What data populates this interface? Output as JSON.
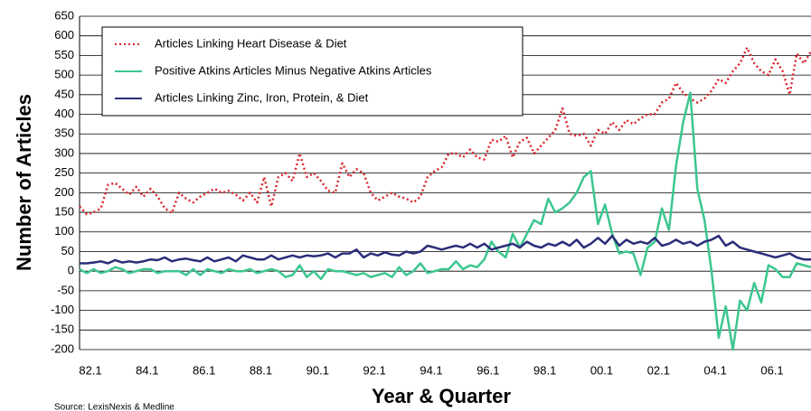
{
  "chart_data": {
    "type": "line",
    "source": "Source:  LexisNexis & Medline",
    "x_label": "Year & Quarter",
    "y_label": "Number of Articles",
    "categories": [
      "82.1",
      null,
      null,
      null,
      null,
      null,
      null,
      null,
      "84.1",
      null,
      null,
      null,
      null,
      null,
      null,
      null,
      "86.1",
      null,
      null,
      null,
      null,
      null,
      null,
      null,
      "88.1",
      null,
      null,
      null,
      null,
      null,
      null,
      null,
      "90.1",
      null,
      null,
      null,
      null,
      null,
      null,
      null,
      "92.1",
      null,
      null,
      null,
      null,
      null,
      null,
      null,
      "94.1",
      null,
      null,
      null,
      null,
      null,
      null,
      null,
      "96.1",
      null,
      null,
      null,
      null,
      null,
      null,
      null,
      "98.1",
      null,
      null,
      null,
      null,
      null,
      null,
      null,
      "00.1",
      null,
      null,
      null,
      null,
      null,
      null,
      null,
      "02.1",
      null,
      null,
      null,
      null,
      null,
      null,
      null,
      "04.1",
      null,
      null,
      null,
      null,
      null,
      null,
      null,
      "06.1",
      null,
      null,
      null,
      null,
      null,
      null,
      null
    ],
    "series": [
      {
        "name": "Articles Linking Heart Disease & Diet",
        "color": "#d9262c",
        "style": "dotted",
        "values": [
          165,
          145,
          150,
          160,
          220,
          225,
          210,
          195,
          215,
          190,
          210,
          190,
          160,
          148,
          200,
          185,
          175,
          190,
          200,
          210,
          200,
          205,
          195,
          180,
          200,
          175,
          240,
          165,
          240,
          250,
          230,
          300,
          240,
          250,
          230,
          205,
          200,
          275,
          240,
          260,
          250,
          200,
          180,
          190,
          200,
          190,
          185,
          175,
          190,
          240,
          255,
          265,
          300,
          300,
          290,
          310,
          290,
          285,
          335,
          330,
          345,
          290,
          330,
          340,
          300,
          320,
          340,
          360,
          415,
          350,
          345,
          350,
          320,
          360,
          350,
          380,
          360,
          385,
          375,
          390,
          400,
          400,
          430,
          440,
          480,
          455,
          440,
          430,
          440,
          460,
          490,
          480,
          510,
          530,
          570,
          530,
          510,
          500,
          540,
          510,
          450,
          555,
          530,
          560
        ]
      },
      {
        "name": "Positive Atkins Articles Minus Negative Atkins Articles",
        "color": "#3cc68f",
        "style": "solid",
        "values": [
          5,
          -5,
          5,
          -5,
          0,
          10,
          5,
          -5,
          0,
          5,
          5,
          -5,
          0,
          0,
          0,
          -10,
          5,
          -10,
          5,
          0,
          -5,
          5,
          0,
          0,
          5,
          -5,
          0,
          5,
          0,
          -15,
          -10,
          15,
          -15,
          0,
          -20,
          5,
          0,
          0,
          -5,
          -10,
          -5,
          -15,
          -10,
          -5,
          -15,
          10,
          -10,
          0,
          20,
          -5,
          0,
          5,
          5,
          25,
          5,
          15,
          10,
          30,
          75,
          50,
          35,
          95,
          60,
          95,
          130,
          120,
          185,
          150,
          160,
          175,
          200,
          240,
          255,
          120,
          170,
          95,
          45,
          50,
          45,
          -10,
          60,
          75,
          160,
          105,
          270,
          380,
          455,
          210,
          130,
          0,
          -170,
          -90,
          -200,
          -75,
          -100,
          -30,
          -80,
          15,
          5,
          -15,
          -15,
          20,
          15,
          10
        ]
      },
      {
        "name": "Articles Linking Zinc, Iron, Protein, & Diet",
        "color": "#2b2d7a",
        "style": "solid",
        "values": [
          20,
          20,
          22,
          25,
          20,
          28,
          22,
          25,
          22,
          25,
          30,
          28,
          35,
          25,
          30,
          32,
          28,
          25,
          35,
          25,
          30,
          35,
          25,
          40,
          35,
          30,
          30,
          40,
          30,
          35,
          40,
          35,
          40,
          38,
          40,
          45,
          35,
          45,
          45,
          55,
          35,
          45,
          40,
          48,
          42,
          40,
          50,
          45,
          50,
          65,
          60,
          55,
          60,
          65,
          60,
          70,
          60,
          70,
          55,
          60,
          65,
          70,
          60,
          75,
          65,
          60,
          70,
          65,
          75,
          65,
          80,
          60,
          70,
          85,
          70,
          90,
          65,
          80,
          70,
          75,
          70,
          85,
          65,
          70,
          80,
          70,
          75,
          65,
          75,
          80,
          90,
          65,
          75,
          60,
          55,
          50,
          45,
          40,
          35,
          40,
          45,
          35,
          30,
          30
        ]
      }
    ],
    "ylim": [
      -200,
      650
    ],
    "yticks": [
      -200,
      -150,
      -100,
      -50,
      0,
      50,
      100,
      150,
      200,
      250,
      300,
      350,
      400,
      450,
      500,
      550,
      600,
      650
    ],
    "grid": true,
    "legend": "upper left"
  }
}
